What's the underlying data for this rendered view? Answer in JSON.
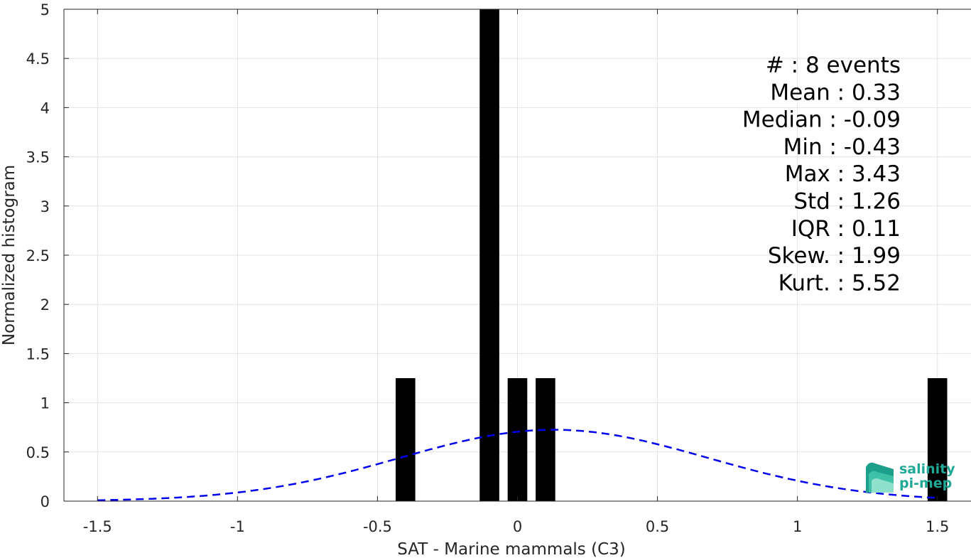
{
  "chart_data": {
    "type": "bar",
    "xlabel": "SAT - Marine mammals (C3)",
    "ylabel": "Normalized histogram",
    "xlim": [
      -1.62,
      1.62
    ],
    "ylim": [
      0,
      5
    ],
    "xticks": [
      -1.5,
      -1,
      -0.5,
      0,
      0.5,
      1,
      1.5
    ],
    "xtick_labels": [
      "-1.5",
      "-1",
      "-0.5",
      "0",
      "0.5",
      "1",
      "1.5"
    ],
    "yticks": [
      0,
      0.5,
      1,
      1.5,
      2,
      2.5,
      3,
      3.5,
      4,
      4.5,
      5
    ],
    "ytick_labels": [
      "0",
      "0.5",
      "1",
      "1.5",
      "2",
      "2.5",
      "3",
      "3.5",
      "4",
      "4.5",
      "5"
    ],
    "grid": true,
    "bin_width": 0.07,
    "bars": [
      {
        "center": -0.4,
        "value": 1.25
      },
      {
        "center": -0.1,
        "value": 5.0
      },
      {
        "center": 0.0,
        "value": 1.25
      },
      {
        "center": 0.1,
        "value": 1.25
      },
      {
        "center": 1.5,
        "value": 1.25
      }
    ],
    "fit_curve": {
      "style": "dashed",
      "color": "#0000ee",
      "distribution": "normal",
      "mean": 0.13,
      "sigma": 0.55,
      "x_range": [
        -1.5,
        1.5
      ]
    },
    "bar_color": "#000000"
  },
  "stats": [
    "#  : 8 events",
    "Mean : 0.33",
    "Median : -0.09",
    "Min : -0.43",
    "Max : 3.43",
    "Std : 1.26",
    "IQR : 0.11",
    "Skew. : 1.99",
    "Kurt. : 5.52"
  ],
  "logo": {
    "line1": "salinity",
    "line2": "pi-mep"
  }
}
